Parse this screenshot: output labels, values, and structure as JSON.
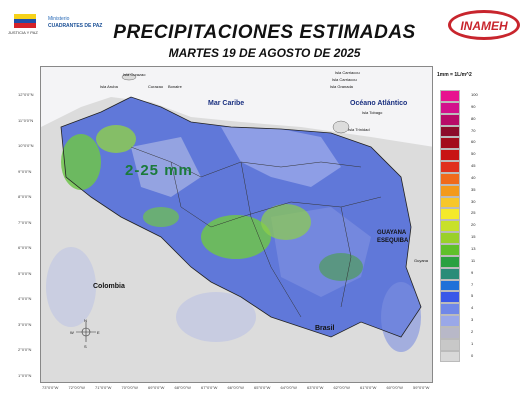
{
  "header": {
    "title": "PRECIPITACIONES ESTIMADAS",
    "subtitle": "MARTES 19 DE AGOSTO DE 2025",
    "logo_left_small": "JUSTICIA Y PAZ",
    "logo_left_line1": "Ministerio",
    "logo_left_line2": "CUADRANTES DE PAZ",
    "logo_right": "INAMEH"
  },
  "map": {
    "rain_label": "2-25 mm",
    "sea_labels": {
      "caribe": "Mar Caribe",
      "atlantico": "Océano Atlántico"
    },
    "country_labels": {
      "colombia": "Colombia",
      "brasil": "Brasil"
    },
    "region_labels": {
      "guayana_1": "GUAYANA",
      "guayana_2": "ESEQUIBA"
    },
    "place_labels": [
      {
        "text": "Isla Curazao"
      },
      {
        "text": "Curazao"
      },
      {
        "text": "Bonaire"
      },
      {
        "text": "Isla Aruba"
      },
      {
        "text": "Isla Carriacou"
      },
      {
        "text": "Isla Carriacou"
      },
      {
        "text": "Isla Granada"
      },
      {
        "text": "Isla Tobago"
      },
      {
        "text": "Isla Trinidad"
      },
      {
        "text": "Guyana"
      }
    ],
    "lat_ticks": [
      "12°0'0\"N",
      "11°0'0\"N",
      "10°0'0\"N",
      "9°0'0\"N",
      "8°0'0\"N",
      "7°0'0\"N",
      "6°0'0\"N",
      "5°0'0\"N",
      "4°0'0\"N",
      "3°0'0\"N",
      "2°0'0\"N",
      "1°0'0\"N"
    ],
    "lon_ticks": [
      "73°0'0\"W",
      "72°0'0\"W",
      "71°0'0\"W",
      "70°0'0\"W",
      "69°0'0\"W",
      "68°0'0\"W",
      "67°0'0\"W",
      "66°0'0\"W",
      "65°0'0\"W",
      "64°0'0\"W",
      "63°0'0\"W",
      "62°0'0\"W",
      "61°0'0\"W",
      "60°0'0\"W",
      "59°0'0\"W"
    ],
    "compass": {
      "n": "N",
      "s": "S",
      "e": "E",
      "w": "W"
    }
  },
  "legend": {
    "title": "1mm = 1L/m^2",
    "colors": [
      "#e8128f",
      "#d3108c",
      "#b80b68",
      "#8c0d2a",
      "#a30d1a",
      "#c81414",
      "#e0301e",
      "#f06a1c",
      "#f39a1c",
      "#f7c72a",
      "#f4ea2a",
      "#c8e02a",
      "#9ad02a",
      "#5fc02a",
      "#2aa040",
      "#2a8c78",
      "#1f70d8",
      "#3a58e8",
      "#7088e8",
      "#9aa8e8",
      "#b8b8c8",
      "#c8c8c8",
      "#d8d8d8",
      "#e6e6e6",
      "#ffffff"
    ],
    "values": [
      "100",
      "90",
      "80",
      "70",
      "60",
      "50",
      "45",
      "40",
      "35",
      "30",
      "25",
      "20",
      "15",
      "13",
      "11",
      "9",
      "7",
      "5",
      "4",
      "3",
      "2",
      "1",
      "0"
    ]
  }
}
